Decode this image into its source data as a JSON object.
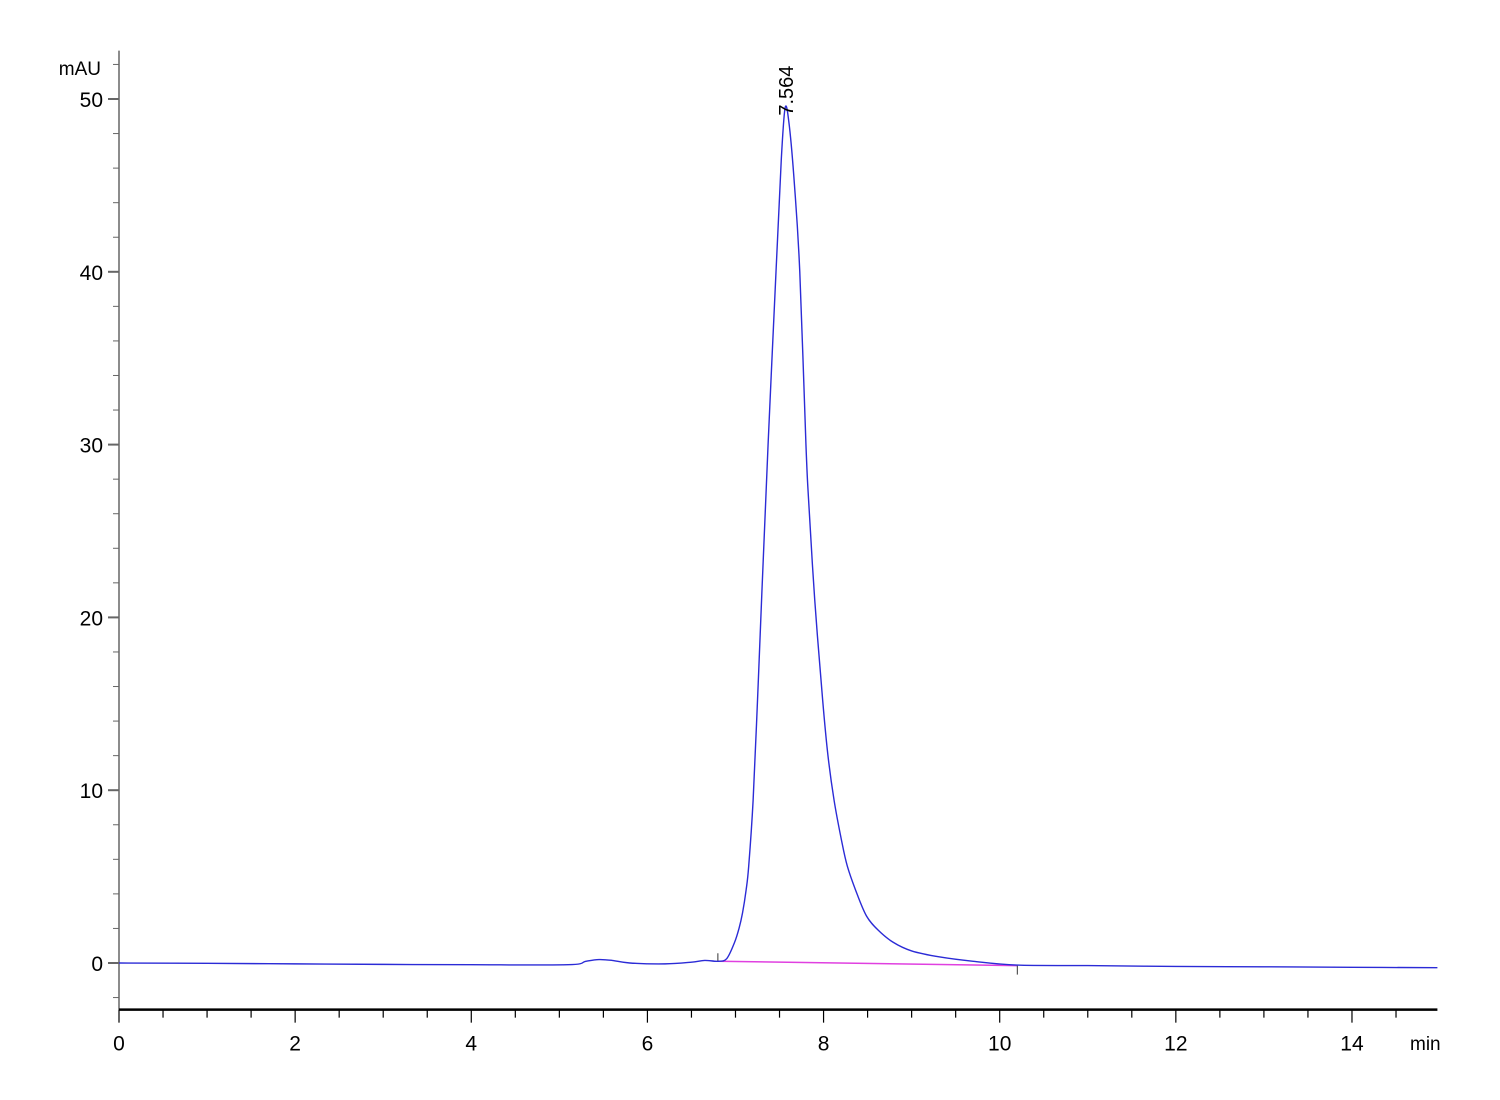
{
  "chart_data": {
    "type": "line",
    "title": "",
    "xlabel": "min",
    "ylabel": "mAU",
    "xlim": [
      0,
      14.97
    ],
    "ylim": [
      -2.7,
      52.8
    ],
    "x_ticks": [
      "0",
      "2",
      "4",
      "6",
      "8",
      "10",
      "12",
      "14"
    ],
    "x_tick_values": [
      0,
      2,
      4,
      6,
      8,
      10,
      12,
      14
    ],
    "x_minor_step": 0.5,
    "y_ticks": [
      "0",
      "10",
      "20",
      "30",
      "40",
      "50"
    ],
    "y_tick_values": [
      0,
      10,
      20,
      30,
      40,
      50
    ],
    "y_minor_step": 2,
    "grid": false,
    "colors": {
      "signal": "#2b2bd6",
      "baseline": "#e040e0",
      "axis_x": "#000000",
      "axis_y": "#666666"
    },
    "series": [
      {
        "x": [
          0,
          1,
          2,
          3,
          4,
          5.1,
          5.3,
          5.45,
          5.6,
          5.8,
          6.2,
          6.5,
          6.65,
          6.8,
          6.9,
          6.99,
          7.04,
          7.08,
          7.12,
          7.15,
          7.2,
          7.25,
          7.3,
          7.37,
          7.46,
          7.52,
          7.564,
          7.61,
          7.67,
          7.73,
          7.8,
          7.83,
          7.9,
          7.99,
          8.05,
          8.12,
          8.2,
          8.27,
          8.38,
          8.49,
          8.62,
          8.79,
          9.0,
          9.32,
          9.7,
          10.2,
          11,
          12,
          13,
          14,
          14.97
        ],
        "y": [
          0,
          -0.02,
          -0.05,
          -0.08,
          -0.1,
          -0.1,
          0.1,
          0.2,
          0.15,
          0.0,
          -0.05,
          0.05,
          0.15,
          0.1,
          0.25,
          1.2,
          2.0,
          2.9,
          4.2,
          5.6,
          9.4,
          15.2,
          21.5,
          30,
          40,
          46.5,
          49.5,
          48.5,
          45,
          40,
          30,
          26.8,
          21,
          15.2,
          12,
          9.4,
          7.2,
          5.6,
          4.0,
          2.7,
          1.9,
          1.2,
          0.7,
          0.35,
          0.1,
          -0.12,
          -0.15,
          -0.2,
          -0.22,
          -0.25,
          -0.27
        ]
      }
    ],
    "baseline": {
      "x": [
        6.8,
        10.2
      ],
      "y": [
        0.1,
        -0.15
      ]
    },
    "integration_marks": [
      6.8,
      10.2
    ],
    "annotations": [
      {
        "label": "7.564",
        "x": 7.564,
        "y": 49.5
      }
    ]
  }
}
